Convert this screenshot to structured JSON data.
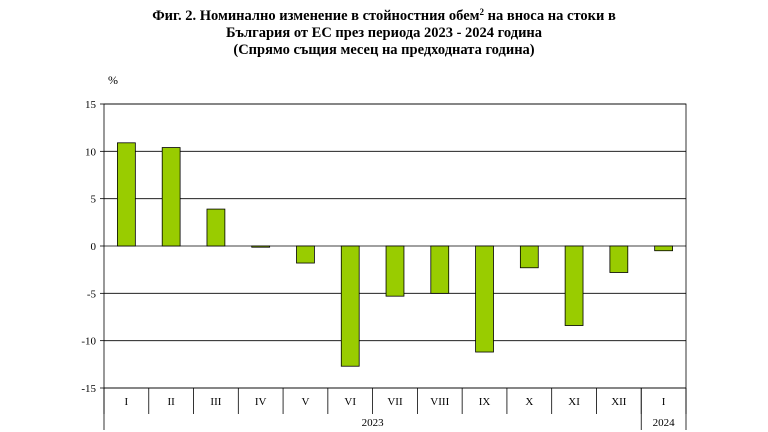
{
  "title": {
    "line1_before_sup": "Фиг. 2. Номинално изменение в стойностния обем",
    "line1_sup": "2",
    "line1_after_sup": " на вноса на стоки в",
    "line2": "България от ЕС през периода 2023 - 2024 година",
    "line3": "(Спрямо същия месец на предходната година)"
  },
  "chart_data": {
    "type": "bar",
    "ylabel": "%",
    "ylim": [
      -15,
      15
    ],
    "yticks": [
      15,
      10,
      5,
      0,
      -5,
      -10,
      -15
    ],
    "grid": true,
    "bar_color": "#99cc00",
    "categories": [
      "I",
      "II",
      "III",
      "IV",
      "V",
      "VI",
      "VII",
      "VIII",
      "IX",
      "X",
      "XI",
      "XII",
      "I"
    ],
    "values": [
      10.9,
      10.4,
      3.9,
      -0.1,
      -1.8,
      -12.7,
      -5.3,
      -5.0,
      -11.2,
      -2.3,
      -8.4,
      -2.8,
      -0.5
    ],
    "year_groups": [
      {
        "label": "2023",
        "count": 12
      },
      {
        "label": "2024",
        "count": 1
      }
    ]
  }
}
